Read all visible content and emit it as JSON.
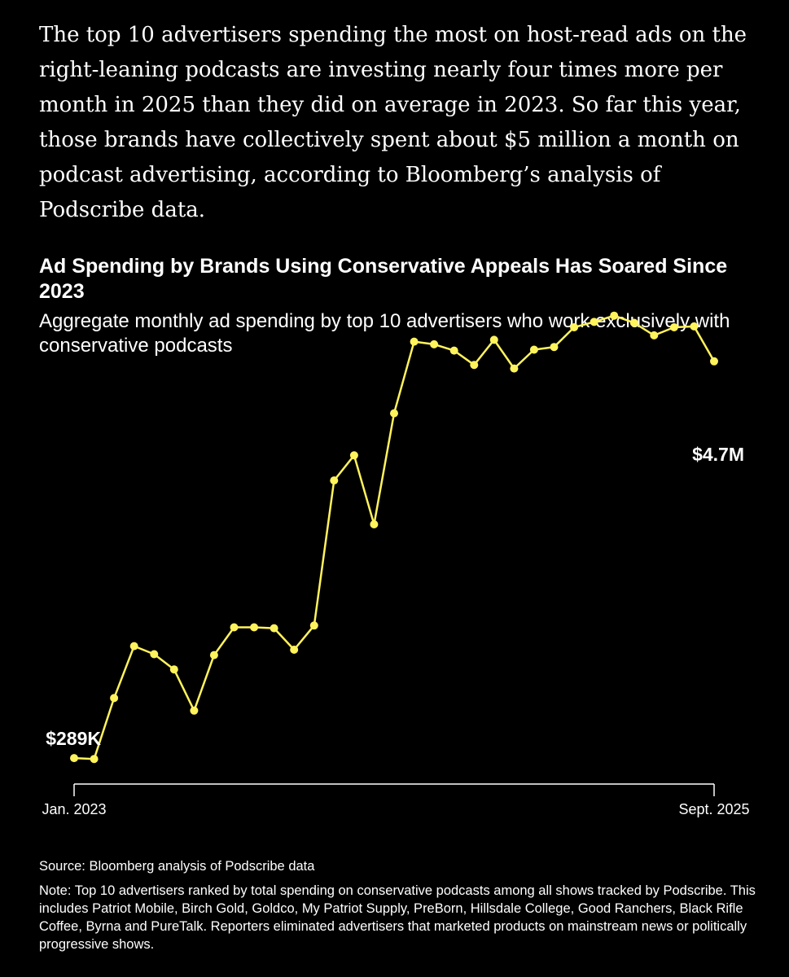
{
  "article": {
    "intro_paragraph": "The top 10 advertisers spending the most on host-read ads on the right-leaning podcasts are investing nearly four times more per month in 2025 than they did on average in 2023. So far this year, those brands have collectively spent about $5 million a month on podcast advertising, according to Bloomberg’s analysis of Podscribe data."
  },
  "chart_data": {
    "type": "line",
    "title": "Ad Spending by Brands Using Conservative Appeals Has Soared Since 2023",
    "subtitle": "Aggregate monthly ad spending by top 10 advertisers who work exclusively with conservative podcasts",
    "x_start_label": "Jan. 2023",
    "x_end_label": "Sept. 2025",
    "start_value_label": "$289K",
    "end_value_label": "$4.7M",
    "unit": "USD millions (estimated)",
    "ylim": [
      0,
      5.5
    ],
    "grid": false,
    "legend": "none",
    "line_color": "#fff35c",
    "x": [
      "2023-01",
      "2023-02",
      "2023-03",
      "2023-04",
      "2023-05",
      "2023-06",
      "2023-07",
      "2023-08",
      "2023-09",
      "2023-10",
      "2023-11",
      "2023-12",
      "2024-01",
      "2024-02",
      "2024-03",
      "2024-04",
      "2024-05",
      "2024-06",
      "2024-07",
      "2024-08",
      "2024-09",
      "2024-10",
      "2024-11",
      "2024-12",
      "2025-01",
      "2025-02",
      "2025-03",
      "2025-04",
      "2025-05",
      "2025-06",
      "2025-07",
      "2025-08",
      "2025-09"
    ],
    "values": [
      0.29,
      0.28,
      0.96,
      1.54,
      1.45,
      1.28,
      0.82,
      1.44,
      1.75,
      1.75,
      1.74,
      1.5,
      1.77,
      3.39,
      3.67,
      2.9,
      4.14,
      4.94,
      4.91,
      4.84,
      4.68,
      4.96,
      4.64,
      4.85,
      4.88,
      5.1,
      5.16,
      5.23,
      5.15,
      5.01,
      5.1,
      5.11,
      4.72
    ]
  },
  "source": "Source: Bloomberg analysis of Podscribe data",
  "note": "Note: Top 10 advertisers ranked by total spending on conservative podcasts among all shows tracked by Podscribe. This includes Patriot Mobile, Birch Gold, Goldco, My Patriot Supply, PreBorn, Hillsdale College, Good Ranchers, Black Rifle Coffee, Byrna and PureTalk. Reporters eliminated advertisers that marketed products on mainstream news or politically progressive shows."
}
